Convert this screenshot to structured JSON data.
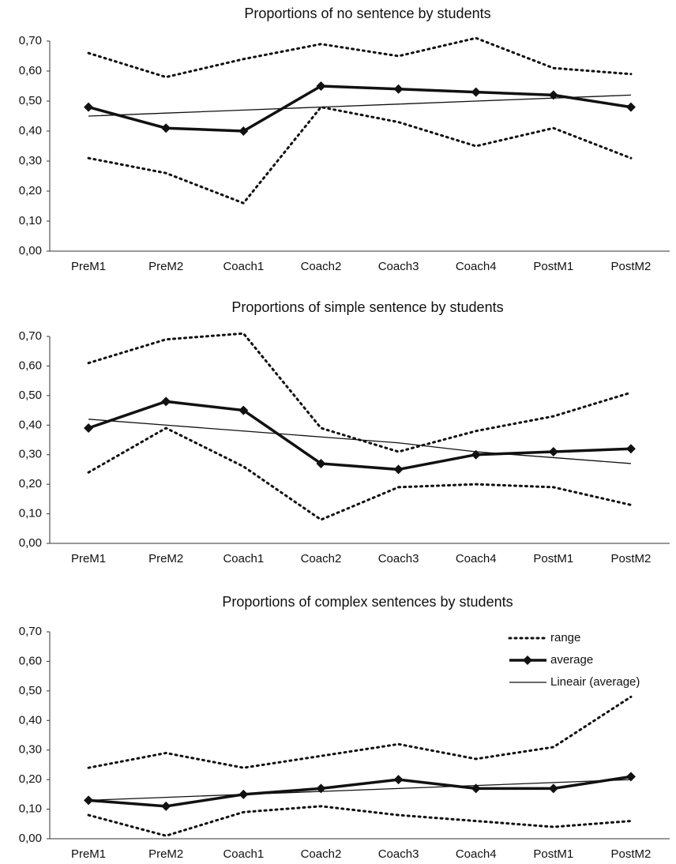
{
  "chart_data": [
    {
      "type": "line",
      "title": "Proportions of no sentence by students",
      "categories": [
        "PreM1",
        "PreM2",
        "Coach1",
        "Coach2",
        "Coach3",
        "Coach4",
        "PostM1",
        "PostM2"
      ],
      "ylim": [
        0,
        0.7
      ],
      "yticks": [
        {
          "value": 0,
          "label": "0,00"
        },
        {
          "value": 0.1,
          "label": "0,10"
        },
        {
          "value": 0.2,
          "label": "0,20"
        },
        {
          "value": 0.3,
          "label": "0,30"
        },
        {
          "value": 0.4,
          "label": "0,40"
        },
        {
          "value": 0.5,
          "label": "0,50"
        },
        {
          "value": 0.6,
          "label": "0,60"
        },
        {
          "value": 0.7,
          "label": "0,70"
        }
      ],
      "legend": false,
      "series": [
        {
          "color": "#111",
          "style": "dotted",
          "values": [
            0.66,
            0.58,
            0.64,
            0.69,
            0.65,
            0.71,
            0.61,
            0.59
          ]
        },
        {
          "color": "#111",
          "style": "dotted",
          "values": [
            0.31,
            0.26,
            0.16,
            0.48,
            0.43,
            0.35,
            0.41,
            0.31
          ]
        },
        {
          "color": "#111",
          "style": "thick",
          "marker": "diamond",
          "values": [
            0.48,
            0.41,
            0.4,
            0.55,
            0.54,
            0.53,
            0.52,
            0.48
          ]
        },
        {
          "color": "#111",
          "style": "thin",
          "values": [
            0.45,
            0.46,
            0.47,
            0.48,
            0.49,
            0.5,
            0.51,
            0.52
          ]
        }
      ]
    },
    {
      "type": "line",
      "title": "Proportions of simple sentence by students",
      "categories": [
        "PreM1",
        "PreM2",
        "Coach1",
        "Coach2",
        "Coach3",
        "Coach4",
        "PostM1",
        "PostM2"
      ],
      "ylim": [
        0,
        0.7
      ],
      "yticks": [
        {
          "value": 0,
          "label": "0,00"
        },
        {
          "value": 0.1,
          "label": "0,10"
        },
        {
          "value": 0.2,
          "label": "0,20"
        },
        {
          "value": 0.3,
          "label": "0,30"
        },
        {
          "value": 0.4,
          "label": "0,40"
        },
        {
          "value": 0.5,
          "label": "0,50"
        },
        {
          "value": 0.6,
          "label": "0,60"
        },
        {
          "value": 0.7,
          "label": "0,70"
        }
      ],
      "legend": false,
      "series": [
        {
          "color": "#111",
          "style": "dotted",
          "values": [
            0.61,
            0.69,
            0.71,
            0.39,
            0.31,
            0.38,
            0.43,
            0.51
          ]
        },
        {
          "color": "#111",
          "style": "dotted",
          "values": [
            0.24,
            0.39,
            0.26,
            0.08,
            0.19,
            0.2,
            0.19,
            0.13
          ]
        },
        {
          "color": "#111",
          "style": "thick",
          "marker": "diamond",
          "values": [
            0.39,
            0.48,
            0.45,
            0.27,
            0.25,
            0.3,
            0.31,
            0.32
          ]
        },
        {
          "color": "#111",
          "style": "thin",
          "values": [
            0.42,
            0.4,
            0.38,
            0.36,
            0.34,
            0.31,
            0.29,
            0.27
          ]
        }
      ]
    },
    {
      "type": "line",
      "title": "Proportions of complex sentences by students",
      "categories": [
        "PreM1",
        "PreM2",
        "Coach1",
        "Coach2",
        "Coach3",
        "Coach4",
        "PostM1",
        "PostM2"
      ],
      "ylim": [
        0,
        0.7
      ],
      "yticks": [
        {
          "value": 0,
          "label": "0,00"
        },
        {
          "value": 0.1,
          "label": "0,10"
        },
        {
          "value": 0.2,
          "label": "0,20"
        },
        {
          "value": 0.3,
          "label": "0,30"
        },
        {
          "value": 0.4,
          "label": "0,40"
        },
        {
          "value": 0.5,
          "label": "0,50"
        },
        {
          "value": 0.6,
          "label": "0,60"
        },
        {
          "value": 0.7,
          "label": "0,70"
        }
      ],
      "legend": "top-right",
      "series": [
        {
          "name": "range",
          "color": "#111",
          "style": "dotted",
          "values": [
            0.24,
            0.29,
            0.24,
            0.28,
            0.32,
            0.27,
            0.31,
            0.48
          ]
        },
        {
          "color": "#111",
          "style": "dotted",
          "values": [
            0.08,
            0.01,
            0.09,
            0.11,
            0.08,
            0.06,
            0.04,
            0.06
          ]
        },
        {
          "name": "average",
          "color": "#111",
          "style": "thick",
          "marker": "diamond",
          "values": [
            0.13,
            0.11,
            0.15,
            0.17,
            0.2,
            0.17,
            0.17,
            0.21
          ]
        },
        {
          "name": "Lineair  (average)",
          "color": "#111",
          "style": "thin",
          "values": [
            0.13,
            0.14,
            0.15,
            0.16,
            0.17,
            0.18,
            0.19,
            0.2
          ]
        }
      ]
    }
  ]
}
